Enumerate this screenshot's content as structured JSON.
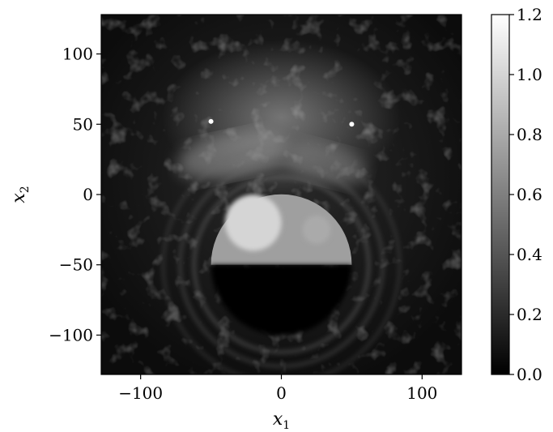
{
  "chart_data": {
    "type": "heatmap",
    "title": "",
    "xlabel": "x",
    "xlabel_subscript": "1",
    "ylabel": "x",
    "ylabel_subscript": "2",
    "xlim": [
      -128,
      128
    ],
    "ylim": [
      -128,
      128
    ],
    "x_ticks": [
      -100,
      0,
      100
    ],
    "x_tick_labels": [
      "−100",
      "0",
      "100"
    ],
    "y_ticks": [
      -100,
      -50,
      0,
      50,
      100
    ],
    "y_tick_labels": [
      "−100",
      "−50",
      "0",
      "50",
      "100"
    ],
    "colormap": "gray",
    "colorbar": {
      "range": [
        0.0,
        1.2
      ],
      "ticks": [
        0.0,
        0.2,
        0.4,
        0.6,
        0.8,
        1.0,
        1.2
      ],
      "tick_labels": [
        "0.0",
        "0.2",
        "0.4",
        "0.6",
        "0.8",
        "1.0",
        "1.2"
      ]
    },
    "features": [
      {
        "name": "semi-disc",
        "kind": "half-disc",
        "cx": 0,
        "cy": -50,
        "r": 50,
        "value": 0.75
      },
      {
        "name": "bright-disc",
        "kind": "disc",
        "cx": -20,
        "cy": -20,
        "r": 20,
        "value": 1.0
      },
      {
        "name": "small-disc",
        "kind": "disc",
        "cx": 25,
        "cy": -25,
        "r": 10,
        "value": 0.8
      },
      {
        "name": "dark-lower-region",
        "kind": "half-disc-below",
        "cx": 0,
        "cy": -50,
        "r": 50,
        "value": 0.0
      }
    ]
  }
}
